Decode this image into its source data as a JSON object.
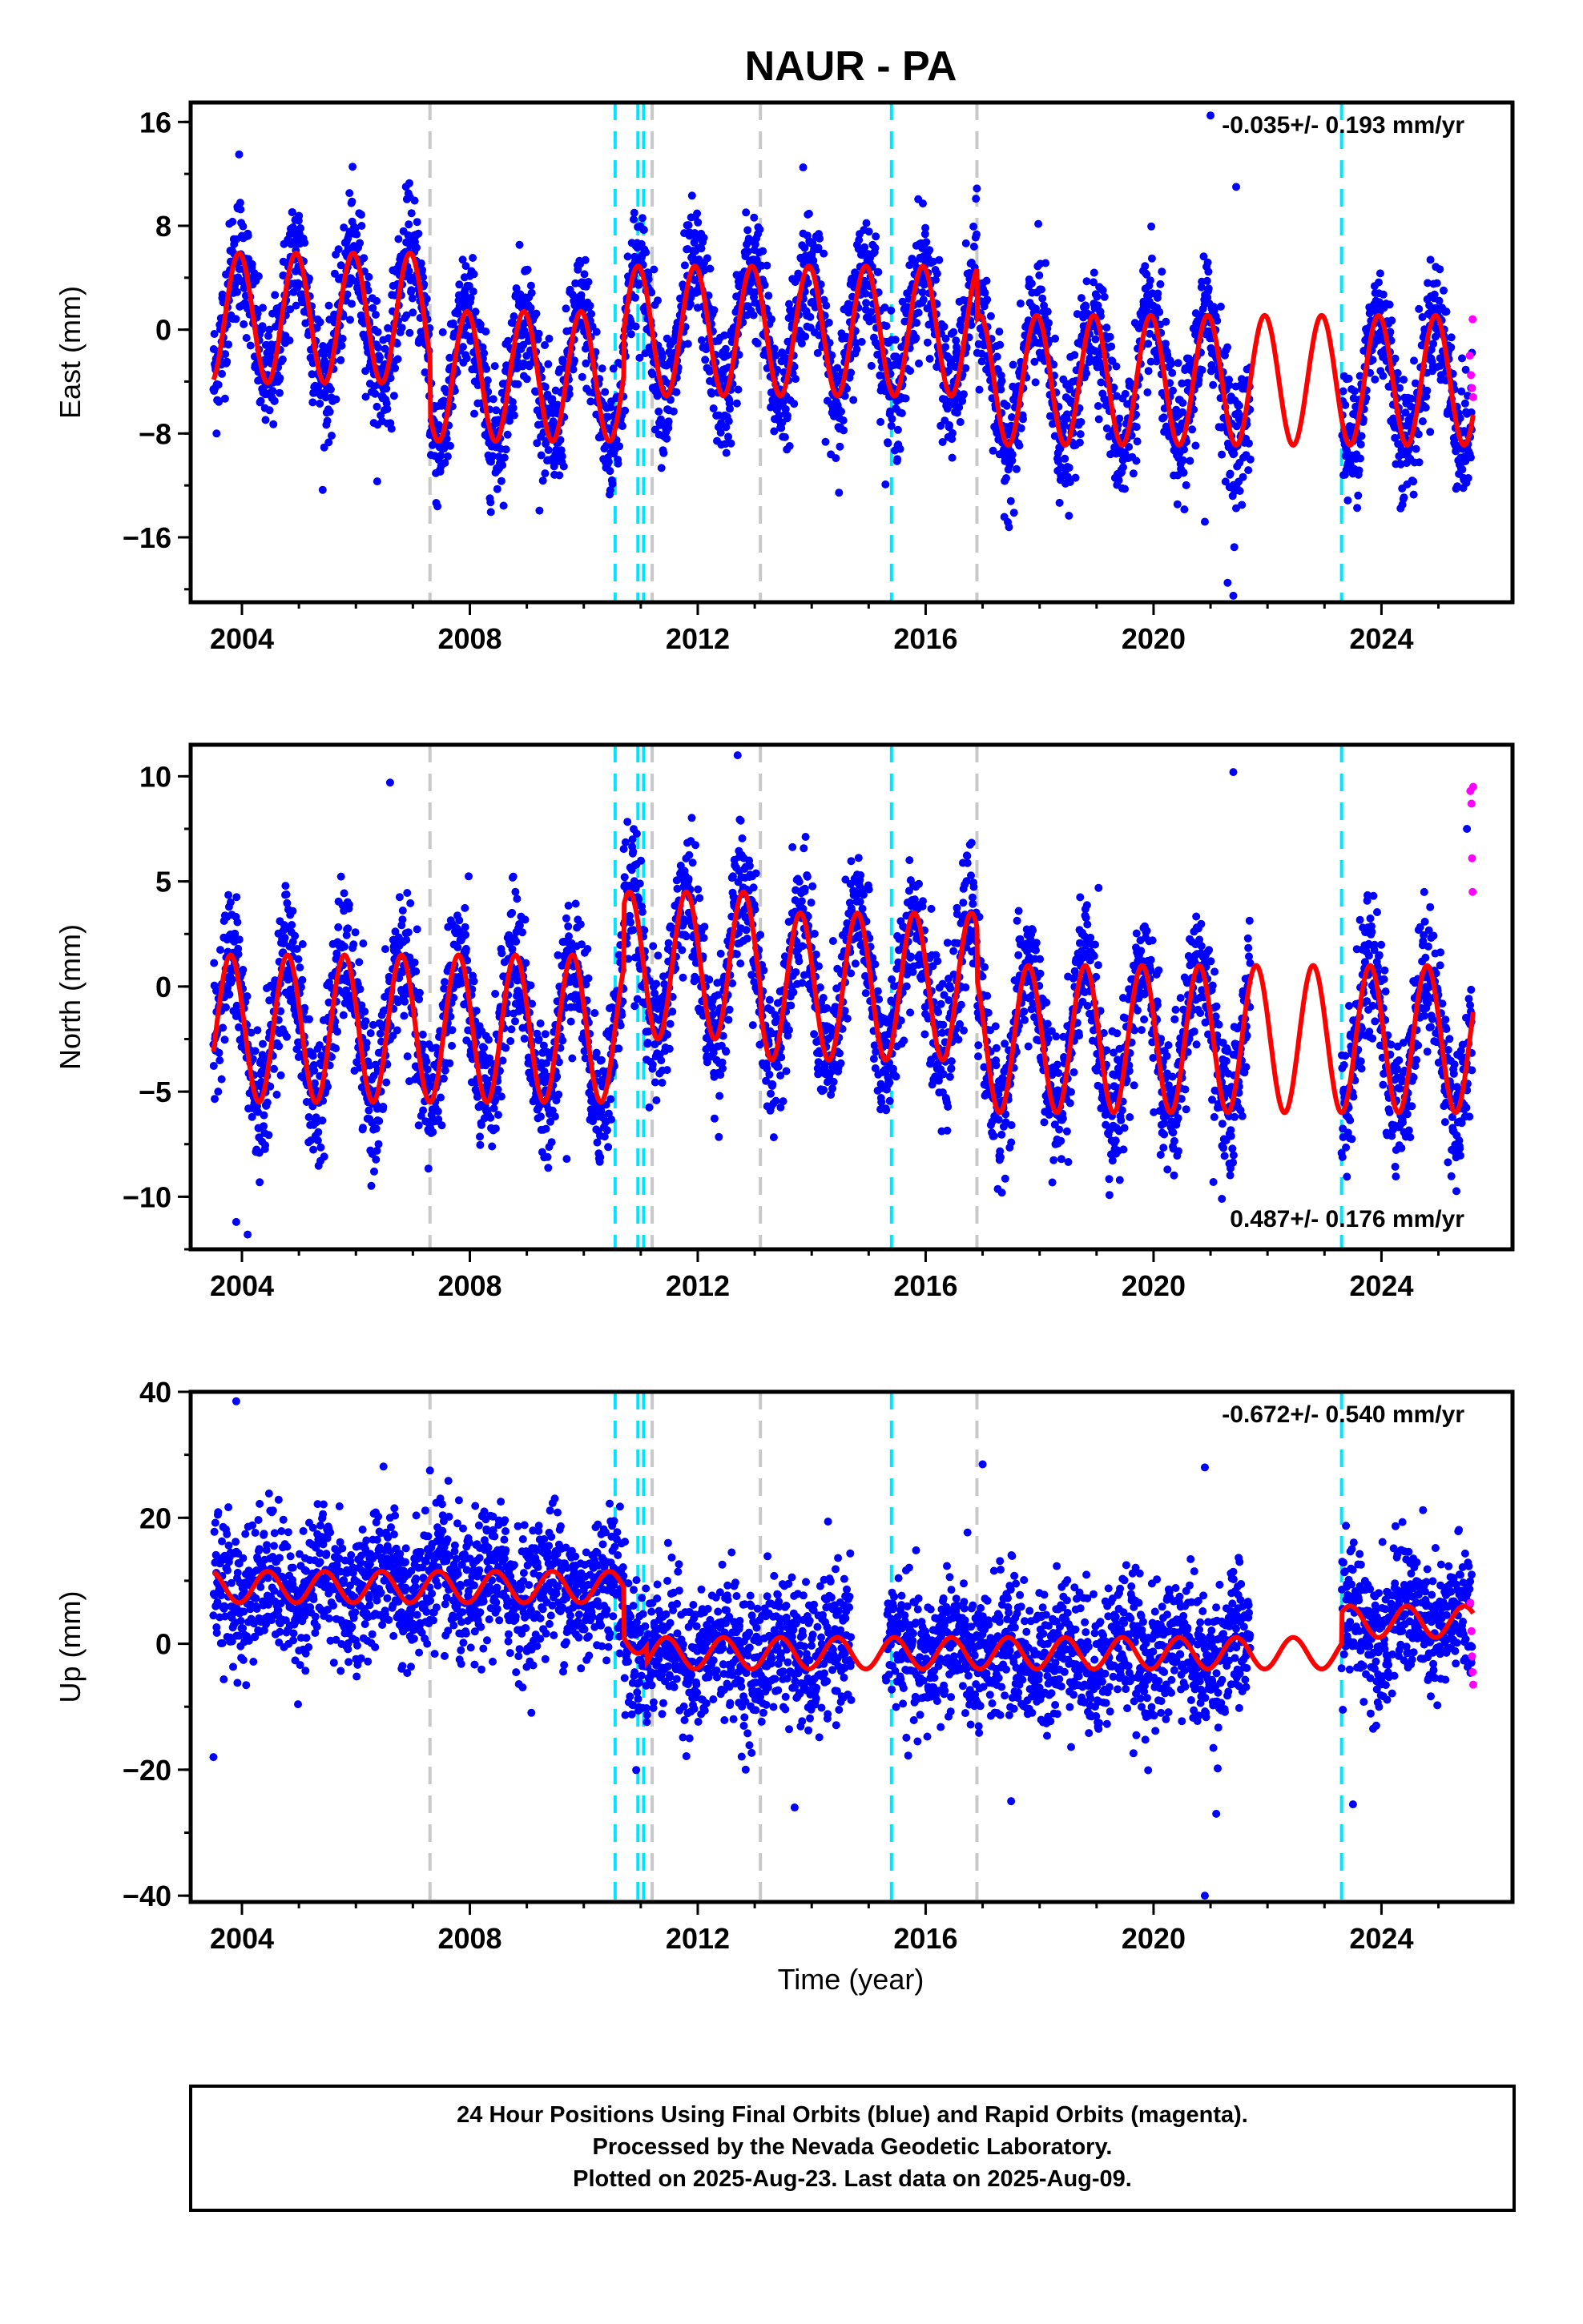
{
  "title": "NAUR - PA",
  "xlabel": "Time (year)",
  "caption": [
    "24 Hour Positions Using Final Orbits (blue) and Rapid Orbits (magenta).",
    "Processed by the Nevada Geodetic Laboratory.",
    "Plotted on 2025-Aug-23. Last data on 2025-Aug-09."
  ],
  "colors": {
    "final_orbits": "#0000ff",
    "rapid_orbits": "#ff00ff",
    "model_fit": "#ff0000",
    "antenna_change": "#c8c8c8",
    "earthquake": "#00e5ff"
  },
  "chart_data": [
    {
      "type": "scatter",
      "panel": "east",
      "ylabel": "East (mm)",
      "rate_label": "-0.035+/- 0.193 mm/yr",
      "xlim": [
        2003.1,
        2026.3
      ],
      "ylim": [
        -21,
        17.5
      ],
      "xticks": [
        2004,
        2008,
        2012,
        2016,
        2020,
        2024
      ],
      "yticks": [
        -16,
        -8,
        0,
        8,
        16
      ],
      "data_start": 2003.5,
      "data_end": 2025.61,
      "gaps": [
        [
          2021.7,
          2023.3
        ]
      ],
      "model": {
        "offset": 0.9,
        "amplitude": 5.0,
        "steps": [
          [
            2007.3,
            -4.5
          ],
          [
            2010.7,
            3.5
          ],
          [
            2016.9,
            -3.8
          ]
        ],
        "seasonal_phase_year": 2003.7
      },
      "scatter_std": 2.4,
      "outliers": [
        [
          2003.95,
          13.5
        ],
        [
          2013.85,
          12.5
        ],
        [
          2021.0,
          16.5
        ],
        [
          2021.45,
          11.0
        ],
        [
          2020.9,
          -14.8
        ],
        [
          2021.3,
          -19.5
        ],
        [
          2021.4,
          -20.5
        ],
        [
          2021.55,
          -13.5
        ],
        [
          2021.7,
          -10.0
        ]
      ],
      "rapid_points": [
        [
          2025.55,
          -2.0
        ],
        [
          2025.57,
          -3.5
        ],
        [
          2025.59,
          -4.5
        ],
        [
          2025.6,
          0.8
        ],
        [
          2025.61,
          -5.2
        ]
      ],
      "grid": false,
      "legend": "none"
    },
    {
      "type": "scatter",
      "panel": "north",
      "ylabel": "North (mm)",
      "rate_label": "0.487+/- 0.176 mm/yr",
      "xlim": [
        2003.1,
        2026.3
      ],
      "ylim": [
        -12.5,
        11.5
      ],
      "xticks": [
        2004,
        2008,
        2012,
        2016,
        2020,
        2024
      ],
      "yticks": [
        -10,
        -5,
        0,
        5,
        10
      ],
      "data_start": 2003.5,
      "data_end": 2025.61,
      "gaps": [
        [
          2021.7,
          2023.3
        ]
      ],
      "model": {
        "offset": -2.0,
        "amplitude": 3.5,
        "steps": [
          [
            2010.7,
            3.0
          ],
          [
            2013.1,
            -1.0
          ],
          [
            2016.9,
            -2.5
          ]
        ],
        "seasonal_phase_year": 2003.55
      },
      "scatter_std": 1.6,
      "outliers": [
        [
          2003.9,
          -11.2
        ],
        [
          2004.1,
          -11.8
        ],
        [
          2006.6,
          9.7
        ],
        [
          2012.7,
          11.0
        ],
        [
          2021.4,
          10.2
        ],
        [
          2021.2,
          -10.1
        ],
        [
          2021.05,
          -9.3
        ],
        [
          2009.7,
          -8.2
        ],
        [
          2025.5,
          7.5
        ]
      ],
      "rapid_points": [
        [
          2025.56,
          9.3
        ],
        [
          2025.58,
          8.7
        ],
        [
          2025.59,
          6.1
        ],
        [
          2025.6,
          4.5
        ],
        [
          2025.61,
          9.5
        ]
      ],
      "grid": false,
      "legend": "none"
    },
    {
      "type": "scatter",
      "panel": "up",
      "ylabel": "Up (mm)",
      "rate_label": "-0.672+/- 0.540 mm/yr",
      "xlim": [
        2003.1,
        2026.3
      ],
      "ylim": [
        -41,
        40
      ],
      "xticks": [
        2004,
        2008,
        2012,
        2016,
        2020,
        2024
      ],
      "yticks": [
        -40,
        -20,
        0,
        20,
        40
      ],
      "data_start": 2003.5,
      "data_end": 2025.61,
      "gaps": [
        [
          2021.7,
          2023.3
        ],
        [
          2014.7,
          2015.3
        ]
      ],
      "model": {
        "offset": 9.0,
        "amplitude": 2.5,
        "steps": [
          [
            2010.7,
            -8.0
          ],
          [
            2011.1,
            -2.5
          ],
          [
            2023.3,
            5.0
          ]
        ],
        "seasonal_phase_year": 2004.2
      },
      "scatter_std": 5.5,
      "outliers": [
        [
          2003.9,
          38.5
        ],
        [
          2007.3,
          27.5
        ],
        [
          2017.0,
          28.5
        ],
        [
          2020.9,
          28.0
        ],
        [
          2003.5,
          -18.0
        ],
        [
          2013.7,
          -26.0
        ],
        [
          2020.9,
          -40.0
        ],
        [
          2021.1,
          -27.0
        ],
        [
          2023.5,
          -25.5
        ],
        [
          2017.5,
          -25.0
        ]
      ],
      "rapid_points": [
        [
          2025.56,
          6.5
        ],
        [
          2025.58,
          2.0
        ],
        [
          2025.59,
          -2.0
        ],
        [
          2025.6,
          -4.5
        ],
        [
          2025.61,
          -6.5
        ]
      ],
      "grid": false,
      "legend": "none"
    }
  ],
  "event_lines": {
    "antenna_change": [
      2007.3,
      2011.2,
      2013.1,
      2016.9
    ],
    "earthquake": [
      2010.55,
      2010.95,
      2011.05,
      2015.4,
      2023.3
    ]
  }
}
